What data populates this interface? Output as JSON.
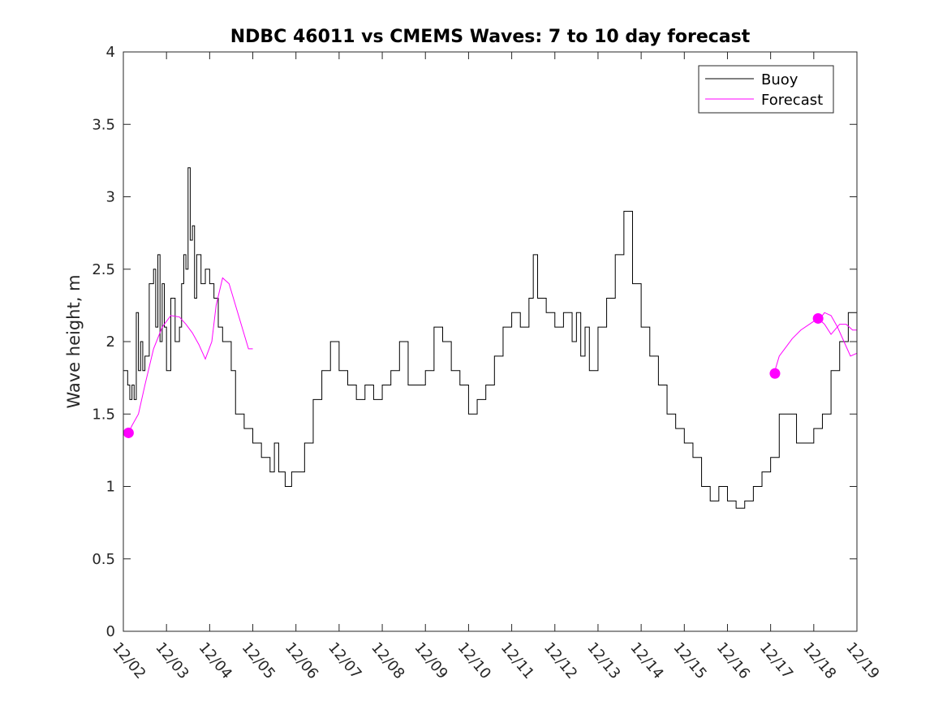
{
  "chart_data": {
    "type": "line",
    "title": "NDBC 46011 vs CMEMS Waves: 7 to 10 day forecast",
    "xlabel": "",
    "ylabel": "Wave height, m",
    "xlim": [
      0,
      17
    ],
    "ylim": [
      0,
      4
    ],
    "x_tick_labels": [
      "12/02",
      "12/03",
      "12/04",
      "12/05",
      "12/06",
      "12/07",
      "12/08",
      "12/09",
      "12/10",
      "12/11",
      "12/12",
      "12/13",
      "12/14",
      "12/15",
      "12/16",
      "12/17",
      "12/18",
      "12/19"
    ],
    "y_ticks": [
      0,
      0.5,
      1,
      1.5,
      2,
      2.5,
      3,
      3.5,
      4
    ],
    "y_tick_labels": [
      "0",
      "0.5",
      "1",
      "1.5",
      "2",
      "2.5",
      "3",
      "3.5",
      "4"
    ],
    "legend": {
      "position": "top-right",
      "entries": [
        {
          "label": "Buoy",
          "color": "#000000"
        },
        {
          "label": "Forecast",
          "color": "#ff00ff"
        }
      ]
    },
    "series": [
      {
        "name": "Buoy",
        "color": "#000000",
        "x_unit": "days since 12/02",
        "x": [
          0,
          0.1,
          0.15,
          0.2,
          0.25,
          0.3,
          0.35,
          0.4,
          0.45,
          0.5,
          0.6,
          0.7,
          0.75,
          0.8,
          0.85,
          0.9,
          0.95,
          1.0,
          1.1,
          1.2,
          1.3,
          1.35,
          1.4,
          1.45,
          1.5,
          1.55,
          1.6,
          1.65,
          1.7,
          1.8,
          1.9,
          2.0,
          2.1,
          2.2,
          2.3,
          2.4,
          2.5,
          2.6,
          2.7,
          2.8,
          2.9,
          3.0,
          3.2,
          3.4,
          3.5,
          3.6,
          3.75,
          3.9,
          4.0,
          4.2,
          4.4,
          4.6,
          4.8,
          5.0,
          5.2,
          5.4,
          5.6,
          5.8,
          6.0,
          6.2,
          6.4,
          6.6,
          6.8,
          7.0,
          7.2,
          7.4,
          7.6,
          7.8,
          8.0,
          8.1,
          8.2,
          8.4,
          8.6,
          8.8,
          9.0,
          9.2,
          9.4,
          9.5,
          9.6,
          9.8,
          10.0,
          10.2,
          10.4,
          10.5,
          10.6,
          10.7,
          10.8,
          11.0,
          11.2,
          11.4,
          11.6,
          11.8,
          12.0,
          12.2,
          12.4,
          12.6,
          12.8,
          13.0,
          13.2,
          13.4,
          13.6,
          13.8,
          14.0,
          14.2,
          14.4,
          14.6,
          14.8,
          15.0,
          15.2,
          15.4,
          15.6,
          15.8,
          16.0,
          16.2,
          16.4,
          16.6,
          16.8,
          17.0
        ],
        "y": [
          1.8,
          1.7,
          1.6,
          1.7,
          1.6,
          2.2,
          1.8,
          2.0,
          1.8,
          1.9,
          2.4,
          2.5,
          2.1,
          2.6,
          2.0,
          2.4,
          2.1,
          1.8,
          2.3,
          2.0,
          2.1,
          2.4,
          2.6,
          2.5,
          3.2,
          2.7,
          2.8,
          2.3,
          2.6,
          2.4,
          2.5,
          2.4,
          2.3,
          2.1,
          2.0,
          2.0,
          1.8,
          1.5,
          1.5,
          1.4,
          1.4,
          1.3,
          1.2,
          1.1,
          1.3,
          1.1,
          1.0,
          1.1,
          1.1,
          1.3,
          1.6,
          1.8,
          2.0,
          1.8,
          1.7,
          1.6,
          1.7,
          1.6,
          1.7,
          1.8,
          2.0,
          1.7,
          1.7,
          1.8,
          2.1,
          2.0,
          1.8,
          1.7,
          1.5,
          1.5,
          1.6,
          1.7,
          1.9,
          2.1,
          2.2,
          2.1,
          2.3,
          2.6,
          2.3,
          2.2,
          2.1,
          2.2,
          2.0,
          2.2,
          1.9,
          2.1,
          1.8,
          2.1,
          2.3,
          2.6,
          2.9,
          2.4,
          2.1,
          1.9,
          1.7,
          1.5,
          1.4,
          1.3,
          1.2,
          1.0,
          0.9,
          1.0,
          0.9,
          0.85,
          0.9,
          1.0,
          1.1,
          1.2,
          1.5,
          1.5,
          1.3,
          1.3,
          1.4,
          1.5,
          1.8,
          2.0,
          2.2,
          2.1
        ]
      },
      {
        "name": "Forecast",
        "color": "#ff00ff",
        "segments": [
          {
            "x": [
              0.12,
              0.2,
              0.35,
              0.5,
              0.7,
              0.9,
              1.1,
              1.3,
              1.45,
              1.6,
              1.75,
              1.9,
              2.05,
              2.15,
              2.3,
              2.45,
              2.6,
              2.75,
              2.9,
              3.0
            ],
            "y": [
              1.37,
              1.42,
              1.5,
              1.7,
              1.95,
              2.1,
              2.18,
              2.17,
              2.12,
              2.06,
              1.98,
              1.88,
              2.0,
              2.25,
              2.44,
              2.4,
              2.25,
              2.1,
              1.95,
              1.95
            ]
          },
          {
            "x": [
              15.1,
              15.2,
              15.35,
              15.5,
              15.7,
              15.9,
              16.1,
              16.25,
              16.4,
              16.6,
              16.75,
              16.9,
              17.0
            ],
            "y": [
              1.8,
              1.9,
              1.96,
              2.02,
              2.08,
              2.12,
              2.16,
              2.12,
              2.05,
              2.12,
              2.12,
              2.08,
              2.08
            ]
          },
          {
            "x": [
              16.15,
              16.25,
              16.4,
              16.55,
              16.7,
              16.85,
              17.0
            ],
            "y": [
              2.16,
              2.2,
              2.18,
              2.1,
              2.0,
              1.9,
              1.92
            ]
          }
        ],
        "markers": {
          "x": [
            0.12,
            15.1,
            16.1
          ],
          "y": [
            1.37,
            1.78,
            2.16
          ]
        }
      }
    ]
  }
}
